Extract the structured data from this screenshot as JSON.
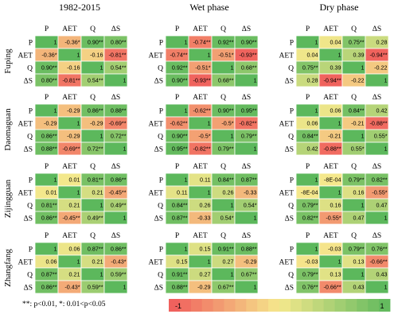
{
  "footnote": "**: p<0.01, *: 0.01<p<0.05",
  "chart_data": {
    "type": "heatmap",
    "variables": [
      "P",
      "AET",
      "Q",
      "ΔS"
    ],
    "periods": [
      "1982-2015",
      "Wet phase",
      "Dry phase"
    ],
    "sites": [
      "Fuping",
      "Daomaguan",
      "Zijingguan",
      "Zhangfang"
    ],
    "colorbar": {
      "min_label": "-1",
      "max_label": "1",
      "range": [
        -1,
        1
      ],
      "low_color": "#f05a5a",
      "mid_color": "#f5e88c",
      "high_color": "#5cb85c"
    },
    "matrices": [
      [
        {
          "values": [
            [
              1,
              -0.36,
              0.9,
              0.8
            ],
            [
              -0.36,
              1,
              -0.16,
              -0.81
            ],
            [
              0.9,
              -0.16,
              1,
              0.54
            ],
            [
              0.8,
              -0.81,
              0.54,
              1
            ]
          ],
          "labels": [
            [
              "1",
              "-0.36*",
              "0.90**",
              "0.80**"
            ],
            [
              "-0.36*",
              "1",
              "-0.16",
              "-0.81**"
            ],
            [
              "0.90**",
              "-0.16",
              "1",
              "0.54**"
            ],
            [
              "0.80**",
              "-0.81**",
              "0.54**",
              "1"
            ]
          ]
        },
        {
          "values": [
            [
              1,
              -0.74,
              0.92,
              0.9
            ],
            [
              -0.74,
              1,
              -0.51,
              -0.93
            ],
            [
              0.92,
              -0.51,
              1,
              0.68
            ],
            [
              0.9,
              -0.93,
              0.68,
              1
            ]
          ],
          "labels": [
            [
              "1",
              "-0.74**",
              "0.92**",
              "0.90**"
            ],
            [
              "-0.74**",
              "1",
              "-0.51*",
              "-0.93**"
            ],
            [
              "0.92**",
              "-0.51*",
              "1",
              "0.68**"
            ],
            [
              "0.90**",
              "-0.93**",
              "0.68**",
              "1"
            ]
          ]
        },
        {
          "values": [
            [
              1,
              0.04,
              0.75,
              0.28
            ],
            [
              0.04,
              1,
              0.39,
              -0.94
            ],
            [
              0.75,
              0.39,
              1,
              -0.22
            ],
            [
              0.28,
              -0.94,
              -0.22,
              1
            ]
          ],
          "labels": [
            [
              "1",
              "0.04",
              "0.75**",
              "0.28"
            ],
            [
              "0.04",
              "1",
              "0.39",
              "-0.94**"
            ],
            [
              "0.75**",
              "0.39",
              "1",
              "-0.22"
            ],
            [
              "0.28",
              "-0.94**",
              "-0.22",
              "1"
            ]
          ]
        }
      ],
      [
        {
          "values": [
            [
              1,
              -0.29,
              0.86,
              0.88
            ],
            [
              -0.29,
              1,
              -0.29,
              -0.69
            ],
            [
              0.86,
              -0.29,
              1,
              0.72
            ],
            [
              0.88,
              -0.69,
              0.72,
              1
            ]
          ],
          "labels": [
            [
              "1",
              "-0.29",
              "0.86**",
              "0.88**"
            ],
            [
              "-0.29",
              "1",
              "-0.29",
              "-0.69**"
            ],
            [
              "0.86**",
              "-0.29",
              "1",
              "0.72**"
            ],
            [
              "0.88**",
              "-0.69**",
              "0.72**",
              "1"
            ]
          ]
        },
        {
          "values": [
            [
              1,
              -0.62,
              0.9,
              0.95
            ],
            [
              -0.62,
              1,
              -0.5,
              -0.82
            ],
            [
              0.9,
              -0.5,
              1,
              0.79
            ],
            [
              0.95,
              -0.82,
              0.79,
              1
            ]
          ],
          "labels": [
            [
              "1",
              "-0.62**",
              "0.90**",
              "0.95**"
            ],
            [
              "-0.62**",
              "1",
              "-0.5*",
              "-0.82**"
            ],
            [
              "0.90**",
              "-0.5*",
              "1",
              "0.79**"
            ],
            [
              "0.95**",
              "-0.82**",
              "0.79**",
              "1"
            ]
          ]
        },
        {
          "values": [
            [
              1,
              0.06,
              0.84,
              0.42
            ],
            [
              0.06,
              1,
              -0.21,
              -0.88
            ],
            [
              0.84,
              -0.21,
              1,
              0.55
            ],
            [
              0.42,
              -0.88,
              0.55,
              1
            ]
          ],
          "labels": [
            [
              "1",
              "0.06",
              "0.84**",
              "0.42"
            ],
            [
              "0.06",
              "1",
              "-0.21",
              "-0.88**"
            ],
            [
              "0.84**",
              "-0.21",
              "1",
              "0.55*"
            ],
            [
              "0.42",
              "-0.88**",
              "0.55*",
              "1"
            ]
          ]
        }
      ],
      [
        {
          "values": [
            [
              1,
              0.01,
              0.81,
              0.86
            ],
            [
              0.01,
              1,
              0.21,
              -0.45
            ],
            [
              0.81,
              0.21,
              1,
              0.49
            ],
            [
              0.86,
              -0.45,
              0.49,
              1
            ]
          ],
          "labels": [
            [
              "1",
              "0.01",
              "0.81**",
              "0.86**"
            ],
            [
              "0.01",
              "1",
              "0.21",
              "-0.45**"
            ],
            [
              "0.81**",
              "0.21",
              "1",
              "0.49**"
            ],
            [
              "0.86**",
              "-0.45**",
              "0.49**",
              "1"
            ]
          ]
        },
        {
          "values": [
            [
              1,
              0.11,
              0.84,
              0.87
            ],
            [
              0.11,
              1,
              0.26,
              -0.33
            ],
            [
              0.84,
              0.26,
              1,
              0.54
            ],
            [
              0.87,
              -0.33,
              0.54,
              1
            ]
          ],
          "labels": [
            [
              "1",
              "0.11",
              "0.84**",
              "0.87**"
            ],
            [
              "0.11",
              "1",
              "0.26",
              "-0.33"
            ],
            [
              "0.84**",
              "0.26",
              "1",
              "0.54*"
            ],
            [
              "0.87**",
              "-0.33",
              "0.54*",
              "1"
            ]
          ]
        },
        {
          "values": [
            [
              1,
              -0.0008,
              0.79,
              0.82
            ],
            [
              -0.0008,
              1,
              0.16,
              -0.55
            ],
            [
              0.79,
              0.16,
              1,
              0.47
            ],
            [
              0.82,
              -0.55,
              0.47,
              1
            ]
          ],
          "labels": [
            [
              "1",
              "-8E-04",
              "0.79**",
              "0.82**"
            ],
            [
              "-8E-04",
              "1",
              "0.16",
              "-0.55*"
            ],
            [
              "0.79**",
              "0.16",
              "1",
              "0.47"
            ],
            [
              "0.82**",
              "-0.55*",
              "0.47",
              "1"
            ]
          ]
        }
      ],
      [
        {
          "values": [
            [
              1,
              0.06,
              0.87,
              0.86
            ],
            [
              0.06,
              1,
              0.21,
              -0.43
            ],
            [
              0.87,
              0.21,
              1,
              0.59
            ],
            [
              0.86,
              -0.43,
              0.59,
              1
            ]
          ],
          "labels": [
            [
              "1",
              "0.06",
              "0.87**",
              "0.86**"
            ],
            [
              "0.06",
              "1",
              "0.21",
              "-0.43*"
            ],
            [
              "0.87**",
              "0.21",
              "1",
              "0.59**"
            ],
            [
              "0.86**",
              "-0.43*",
              "0.59**",
              "1"
            ]
          ]
        },
        {
          "values": [
            [
              1,
              0.15,
              0.91,
              0.88
            ],
            [
              0.15,
              1,
              0.27,
              -0.29
            ],
            [
              0.91,
              0.27,
              1,
              0.67
            ],
            [
              0.88,
              -0.29,
              0.67,
              1
            ]
          ],
          "labels": [
            [
              "1",
              "0.15",
              "0.91**",
              "0.88**"
            ],
            [
              "0.15",
              "1",
              "0.27",
              "-0.29"
            ],
            [
              "0.91**",
              "0.27",
              "1",
              "0.67**"
            ],
            [
              "0.88**",
              "-0.29",
              "0.67**",
              "1"
            ]
          ]
        },
        {
          "values": [
            [
              1,
              -0.03,
              0.79,
              0.76
            ],
            [
              -0.03,
              1,
              0.13,
              -0.66
            ],
            [
              0.79,
              0.13,
              1,
              0.43
            ],
            [
              0.76,
              -0.66,
              0.43,
              1
            ]
          ],
          "labels": [
            [
              "1",
              "-0.03",
              "0.79**",
              "0.76**"
            ],
            [
              "-0.03",
              "1",
              "0.13",
              "-0.66**"
            ],
            [
              "0.79**",
              "0.13",
              "1",
              "0.43"
            ],
            [
              "0.76**",
              "-0.66**",
              "0.43",
              "1"
            ]
          ]
        }
      ]
    ]
  }
}
